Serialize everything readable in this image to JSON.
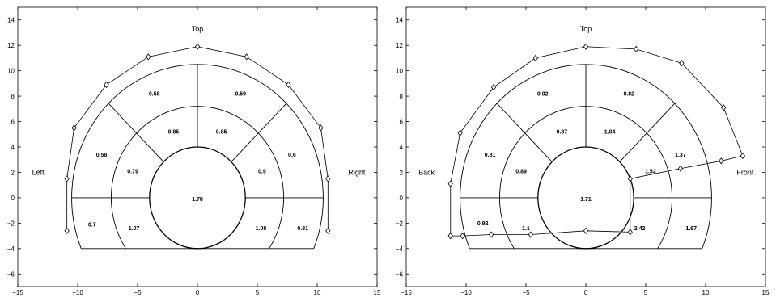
{
  "chart_data": [
    {
      "type": "other",
      "xlim": [
        -15,
        15
      ],
      "ylim": [
        -7,
        15
      ],
      "x_ticks": [
        -15,
        -10,
        -5,
        0,
        5,
        10,
        15
      ],
      "y_ticks": [
        -6,
        -4,
        -2,
        0,
        2,
        4,
        6,
        8,
        10,
        12,
        14
      ],
      "x_tick_labels": [
        "−15",
        "−10",
        "−5",
        "0",
        "5",
        "10",
        "15"
      ],
      "y_tick_labels": [
        "−6",
        "−4",
        "−2",
        "0",
        "2",
        "4",
        "6",
        "8",
        "10",
        "12",
        "14"
      ],
      "direction_labels": {
        "top": "Top",
        "left": "Left",
        "right": "Right"
      },
      "regions": [
        {
          "label": "0.58",
          "x": -3.6,
          "y": 8.2
        },
        {
          "label": "0.59",
          "x": 3.6,
          "y": 8.2
        },
        {
          "label": "0.85",
          "x": -2.0,
          "y": 5.2
        },
        {
          "label": "0.85",
          "x": 2.0,
          "y": 5.2
        },
        {
          "label": "0.58",
          "x": -8.0,
          "y": 3.4
        },
        {
          "label": "0.6",
          "x": 7.9,
          "y": 3.4
        },
        {
          "label": "0.79",
          "x": -5.4,
          "y": 2.1
        },
        {
          "label": "0.9",
          "x": 5.4,
          "y": 2.1
        },
        {
          "label": "1.78",
          "x": 0,
          "y": -0.1
        },
        {
          "label": "0.7",
          "x": -8.8,
          "y": -2.1
        },
        {
          "label": "1.07",
          "x": -5.3,
          "y": -2.4
        },
        {
          "label": "1.08",
          "x": 5.3,
          "y": -2.4
        },
        {
          "label": "0.81",
          "x": 8.8,
          "y": -2.4
        }
      ],
      "polar_line": {
        "x": [
          -10.9,
          -10.9,
          -10.3,
          -7.6,
          -4.1,
          0.0,
          4.1,
          7.6,
          10.3,
          10.9,
          10.9
        ],
        "y": [
          -2.6,
          1.5,
          5.5,
          8.9,
          11.1,
          11.9,
          11.1,
          8.9,
          5.5,
          1.5,
          -2.6
        ]
      }
    },
    {
      "type": "other",
      "xlim": [
        -15,
        15
      ],
      "ylim": [
        -7,
        15
      ],
      "x_ticks": [
        -15,
        -10,
        -5,
        0,
        5,
        10,
        15
      ],
      "y_ticks": [
        -6,
        -4,
        -2,
        0,
        2,
        4,
        6,
        8,
        10,
        12,
        14
      ],
      "x_tick_labels": [
        "−15",
        "−10",
        "−5",
        "0",
        "5",
        "10",
        "15"
      ],
      "y_tick_labels": [
        "−6",
        "−4",
        "−2",
        "0",
        "2",
        "4",
        "6",
        "8",
        "10",
        "12",
        "14"
      ],
      "direction_labels": {
        "top": "Top",
        "left": "Back",
        "right": "Front"
      },
      "regions": [
        {
          "label": "0.92",
          "x": -3.6,
          "y": 8.2
        },
        {
          "label": "0.82",
          "x": 3.6,
          "y": 8.2
        },
        {
          "label": "0.87",
          "x": -2.0,
          "y": 5.2
        },
        {
          "label": "1.04",
          "x": 2.0,
          "y": 5.2
        },
        {
          "label": "0.81",
          "x": -8.0,
          "y": 3.4
        },
        {
          "label": "1.37",
          "x": 7.9,
          "y": 3.4
        },
        {
          "label": "0.89",
          "x": -5.4,
          "y": 2.1
        },
        {
          "label": "1.52",
          "x": 5.4,
          "y": 2.1
        },
        {
          "label": "1.71",
          "x": 0,
          "y": -0.1
        },
        {
          "label": "0.92",
          "x": -8.6,
          "y": -2.0
        },
        {
          "label": "1.1",
          "x": -5.0,
          "y": -2.4
        },
        {
          "label": "2.42",
          "x": 4.5,
          "y": -2.4
        },
        {
          "label": "1.67",
          "x": 8.8,
          "y": -2.4
        }
      ],
      "polar_line": {
        "x": [
          -11.3,
          -11.3,
          -10.5,
          -7.7,
          -4.2,
          0.0,
          4.2,
          8.0,
          11.5,
          13.1,
          11.3,
          7.9,
          3.7,
          3.7,
          0.0,
          -4.6,
          -7.9,
          -10.3,
          -11.3
        ],
        "y": [
          -3.0,
          1.1,
          5.1,
          8.7,
          11.0,
          11.9,
          11.7,
          10.6,
          7.1,
          3.3,
          2.9,
          2.3,
          1.5,
          -2.7,
          -2.6,
          -2.9,
          -2.9,
          -3.0,
          -3.0
        ]
      }
    }
  ]
}
